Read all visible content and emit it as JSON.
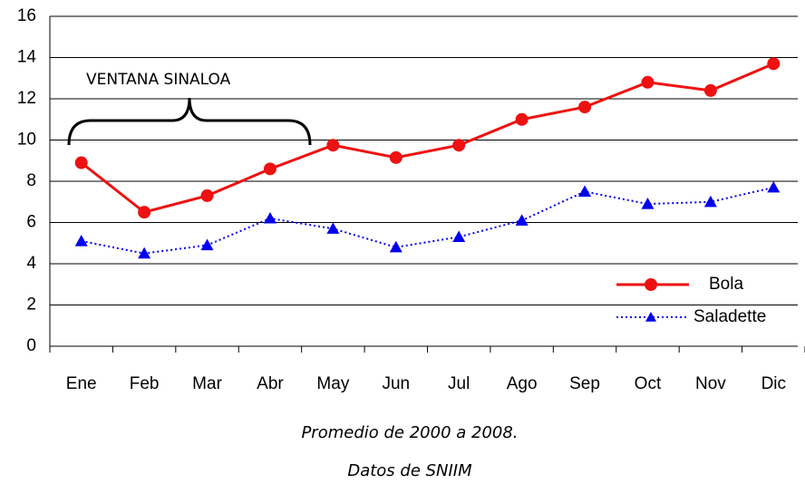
{
  "chart_data": {
    "type": "line",
    "categories": [
      "Ene",
      "Feb",
      "Mar",
      "Abr",
      "May",
      "Jun",
      "Jul",
      "Ago",
      "Sep",
      "Oct",
      "Nov",
      "Dic"
    ],
    "series": [
      {
        "name": "Bola",
        "color": "#ee1111",
        "values": [
          8.9,
          6.5,
          7.3,
          8.6,
          9.75,
          9.15,
          9.75,
          11.0,
          11.6,
          12.8,
          12.4,
          13.7
        ]
      },
      {
        "name": "Saladette",
        "color": "#0000ee",
        "values": [
          5.1,
          4.5,
          4.9,
          6.2,
          5.7,
          4.8,
          5.3,
          6.1,
          7.5,
          6.9,
          7.0,
          7.7
        ]
      }
    ],
    "ylim": [
      0,
      16
    ],
    "yticks": [
      0,
      2,
      4,
      6,
      8,
      10,
      12,
      14,
      16
    ],
    "grid": true,
    "annotations": [
      "VENTANA SINALOA"
    ],
    "captions": [
      "Promedio de 2000 a 2008.",
      "Datos de SNIIM"
    ]
  }
}
